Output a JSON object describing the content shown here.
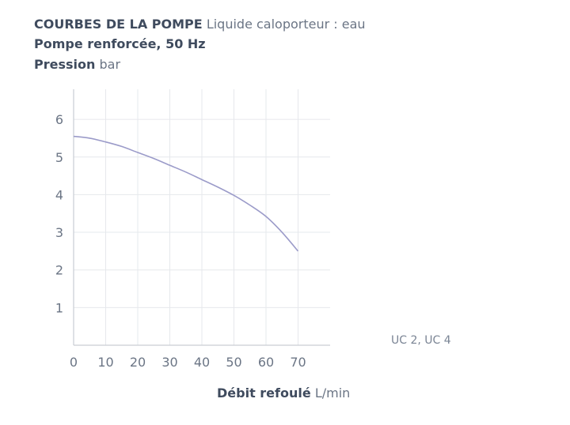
{
  "header": {
    "title_bold": "COURBES DE LA POMPE",
    "title_light": "Liquide caloporteur : eau",
    "subtitle_bold": "Pompe renforcée, 50 Hz",
    "ylabel_bold": "Pression",
    "ylabel_unit": "bar"
  },
  "footer": {
    "xlabel_bold": "Débit refoulé",
    "xlabel_unit": "L/min",
    "model_note": "UC 2, UC 4"
  },
  "colors": {
    "curve": "#9b9bc9",
    "grid": "#e6e8ec",
    "axis": "#c9cdd4",
    "tick_text": "#6b7585"
  },
  "chart_data": {
    "type": "line",
    "title": "COURBES DE LA POMPE",
    "xlabel": "Débit refoulé L/min",
    "ylabel": "Pression bar",
    "xlim": [
      0,
      80
    ],
    "ylim": [
      0,
      6.8
    ],
    "xticks": [
      0,
      10,
      20,
      30,
      40,
      50,
      60,
      70
    ],
    "yticks": [
      1,
      2,
      3,
      4,
      5,
      6
    ],
    "grid": true,
    "series": [
      {
        "x": [
          0,
          5,
          10,
          15,
          20,
          25,
          30,
          35,
          40,
          45,
          50,
          55,
          60,
          65,
          70
        ],
        "values": [
          5.55,
          5.5,
          5.4,
          5.28,
          5.12,
          4.96,
          4.78,
          4.6,
          4.4,
          4.2,
          3.98,
          3.72,
          3.42,
          3.0,
          2.5
        ]
      }
    ]
  }
}
